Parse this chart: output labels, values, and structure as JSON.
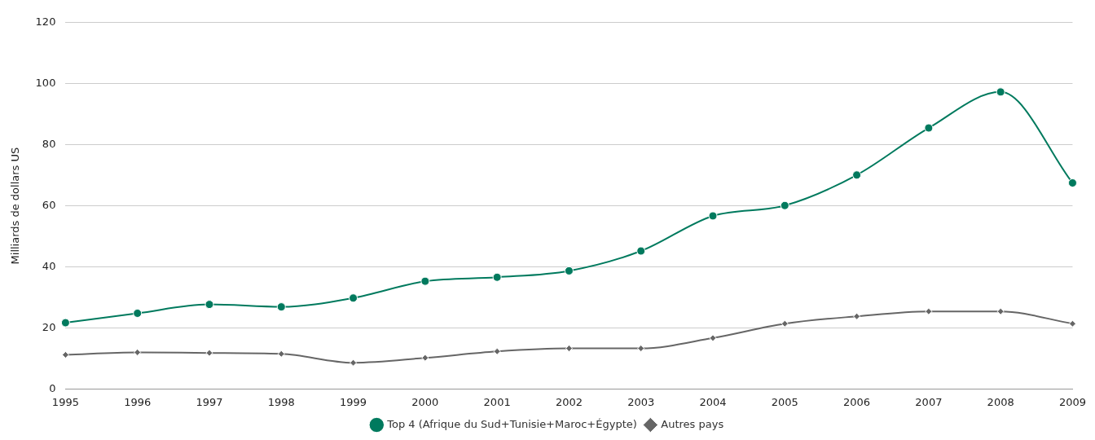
{
  "chart_data": {
    "type": "line",
    "ylabel": "Milliards de dollars US",
    "categories": [
      "1995",
      "1996",
      "1997",
      "1998",
      "1999",
      "2000",
      "2001",
      "2002",
      "2003",
      "2004",
      "2005",
      "2006",
      "2007",
      "2008",
      "2009"
    ],
    "series": [
      {
        "name": "Top 4 (Afrique du Sud+Tunisie+Maroc+Égypte)",
        "color": "#007a5e",
        "marker": "circle",
        "values": [
          21.7,
          24.8,
          27.7,
          26.9,
          29.8,
          35.3,
          36.6,
          38.7,
          45.2,
          56.7,
          60.1,
          70.1,
          85.5,
          97.3,
          67.5
        ]
      },
      {
        "name": "Autres pays",
        "color": "#666666",
        "marker": "diamond",
        "values": [
          11.2,
          12.0,
          11.8,
          11.5,
          8.6,
          10.2,
          12.3,
          13.3,
          13.3,
          16.7,
          21.4,
          23.8,
          25.4,
          25.4,
          21.4
        ]
      }
    ],
    "ylim": [
      0,
      120
    ],
    "yticks": [
      0,
      20,
      40,
      60,
      80,
      100,
      120
    ],
    "grid": "y",
    "legend": "bottom",
    "line_style": "solid"
  }
}
